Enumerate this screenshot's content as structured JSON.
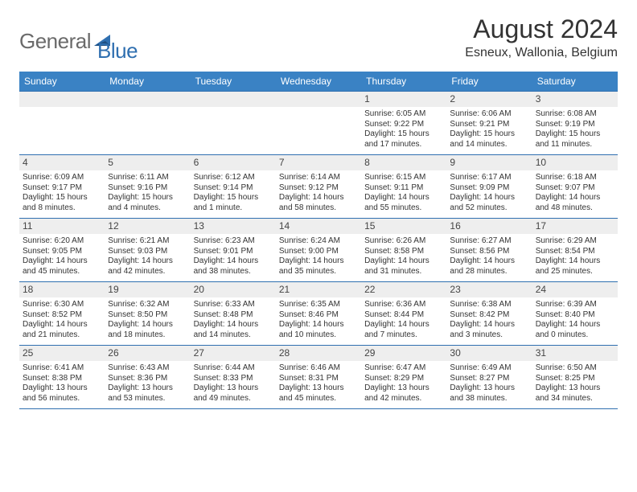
{
  "logo": {
    "general": "General",
    "blue": "Blue"
  },
  "header": {
    "title": "August 2024",
    "subtitle": "Esneux, Wallonia, Belgium"
  },
  "colors": {
    "header_bg": "#3a82c4",
    "header_text": "#ffffff",
    "border": "#2f6fb0",
    "daynum_bg": "#eeeeee",
    "text": "#333333",
    "logo_gray": "#6a6a6a",
    "logo_blue": "#2f6fb0"
  },
  "dayNames": [
    "Sunday",
    "Monday",
    "Tuesday",
    "Wednesday",
    "Thursday",
    "Friday",
    "Saturday"
  ],
  "weeks": [
    [
      null,
      null,
      null,
      null,
      {
        "n": "1",
        "sr": "Sunrise: 6:05 AM",
        "ss": "Sunset: 9:22 PM",
        "dl1": "Daylight: 15 hours",
        "dl2": "and 17 minutes."
      },
      {
        "n": "2",
        "sr": "Sunrise: 6:06 AM",
        "ss": "Sunset: 9:21 PM",
        "dl1": "Daylight: 15 hours",
        "dl2": "and 14 minutes."
      },
      {
        "n": "3",
        "sr": "Sunrise: 6:08 AM",
        "ss": "Sunset: 9:19 PM",
        "dl1": "Daylight: 15 hours",
        "dl2": "and 11 minutes."
      }
    ],
    [
      {
        "n": "4",
        "sr": "Sunrise: 6:09 AM",
        "ss": "Sunset: 9:17 PM",
        "dl1": "Daylight: 15 hours",
        "dl2": "and 8 minutes."
      },
      {
        "n": "5",
        "sr": "Sunrise: 6:11 AM",
        "ss": "Sunset: 9:16 PM",
        "dl1": "Daylight: 15 hours",
        "dl2": "and 4 minutes."
      },
      {
        "n": "6",
        "sr": "Sunrise: 6:12 AM",
        "ss": "Sunset: 9:14 PM",
        "dl1": "Daylight: 15 hours",
        "dl2": "and 1 minute."
      },
      {
        "n": "7",
        "sr": "Sunrise: 6:14 AM",
        "ss": "Sunset: 9:12 PM",
        "dl1": "Daylight: 14 hours",
        "dl2": "and 58 minutes."
      },
      {
        "n": "8",
        "sr": "Sunrise: 6:15 AM",
        "ss": "Sunset: 9:11 PM",
        "dl1": "Daylight: 14 hours",
        "dl2": "and 55 minutes."
      },
      {
        "n": "9",
        "sr": "Sunrise: 6:17 AM",
        "ss": "Sunset: 9:09 PM",
        "dl1": "Daylight: 14 hours",
        "dl2": "and 52 minutes."
      },
      {
        "n": "10",
        "sr": "Sunrise: 6:18 AM",
        "ss": "Sunset: 9:07 PM",
        "dl1": "Daylight: 14 hours",
        "dl2": "and 48 minutes."
      }
    ],
    [
      {
        "n": "11",
        "sr": "Sunrise: 6:20 AM",
        "ss": "Sunset: 9:05 PM",
        "dl1": "Daylight: 14 hours",
        "dl2": "and 45 minutes."
      },
      {
        "n": "12",
        "sr": "Sunrise: 6:21 AM",
        "ss": "Sunset: 9:03 PM",
        "dl1": "Daylight: 14 hours",
        "dl2": "and 42 minutes."
      },
      {
        "n": "13",
        "sr": "Sunrise: 6:23 AM",
        "ss": "Sunset: 9:01 PM",
        "dl1": "Daylight: 14 hours",
        "dl2": "and 38 minutes."
      },
      {
        "n": "14",
        "sr": "Sunrise: 6:24 AM",
        "ss": "Sunset: 9:00 PM",
        "dl1": "Daylight: 14 hours",
        "dl2": "and 35 minutes."
      },
      {
        "n": "15",
        "sr": "Sunrise: 6:26 AM",
        "ss": "Sunset: 8:58 PM",
        "dl1": "Daylight: 14 hours",
        "dl2": "and 31 minutes."
      },
      {
        "n": "16",
        "sr": "Sunrise: 6:27 AM",
        "ss": "Sunset: 8:56 PM",
        "dl1": "Daylight: 14 hours",
        "dl2": "and 28 minutes."
      },
      {
        "n": "17",
        "sr": "Sunrise: 6:29 AM",
        "ss": "Sunset: 8:54 PM",
        "dl1": "Daylight: 14 hours",
        "dl2": "and 25 minutes."
      }
    ],
    [
      {
        "n": "18",
        "sr": "Sunrise: 6:30 AM",
        "ss": "Sunset: 8:52 PM",
        "dl1": "Daylight: 14 hours",
        "dl2": "and 21 minutes."
      },
      {
        "n": "19",
        "sr": "Sunrise: 6:32 AM",
        "ss": "Sunset: 8:50 PM",
        "dl1": "Daylight: 14 hours",
        "dl2": "and 18 minutes."
      },
      {
        "n": "20",
        "sr": "Sunrise: 6:33 AM",
        "ss": "Sunset: 8:48 PM",
        "dl1": "Daylight: 14 hours",
        "dl2": "and 14 minutes."
      },
      {
        "n": "21",
        "sr": "Sunrise: 6:35 AM",
        "ss": "Sunset: 8:46 PM",
        "dl1": "Daylight: 14 hours",
        "dl2": "and 10 minutes."
      },
      {
        "n": "22",
        "sr": "Sunrise: 6:36 AM",
        "ss": "Sunset: 8:44 PM",
        "dl1": "Daylight: 14 hours",
        "dl2": "and 7 minutes."
      },
      {
        "n": "23",
        "sr": "Sunrise: 6:38 AM",
        "ss": "Sunset: 8:42 PM",
        "dl1": "Daylight: 14 hours",
        "dl2": "and 3 minutes."
      },
      {
        "n": "24",
        "sr": "Sunrise: 6:39 AM",
        "ss": "Sunset: 8:40 PM",
        "dl1": "Daylight: 14 hours",
        "dl2": "and 0 minutes."
      }
    ],
    [
      {
        "n": "25",
        "sr": "Sunrise: 6:41 AM",
        "ss": "Sunset: 8:38 PM",
        "dl1": "Daylight: 13 hours",
        "dl2": "and 56 minutes."
      },
      {
        "n": "26",
        "sr": "Sunrise: 6:43 AM",
        "ss": "Sunset: 8:36 PM",
        "dl1": "Daylight: 13 hours",
        "dl2": "and 53 minutes."
      },
      {
        "n": "27",
        "sr": "Sunrise: 6:44 AM",
        "ss": "Sunset: 8:33 PM",
        "dl1": "Daylight: 13 hours",
        "dl2": "and 49 minutes."
      },
      {
        "n": "28",
        "sr": "Sunrise: 6:46 AM",
        "ss": "Sunset: 8:31 PM",
        "dl1": "Daylight: 13 hours",
        "dl2": "and 45 minutes."
      },
      {
        "n": "29",
        "sr": "Sunrise: 6:47 AM",
        "ss": "Sunset: 8:29 PM",
        "dl1": "Daylight: 13 hours",
        "dl2": "and 42 minutes."
      },
      {
        "n": "30",
        "sr": "Sunrise: 6:49 AM",
        "ss": "Sunset: 8:27 PM",
        "dl1": "Daylight: 13 hours",
        "dl2": "and 38 minutes."
      },
      {
        "n": "31",
        "sr": "Sunrise: 6:50 AM",
        "ss": "Sunset: 8:25 PM",
        "dl1": "Daylight: 13 hours",
        "dl2": "and 34 minutes."
      }
    ]
  ]
}
